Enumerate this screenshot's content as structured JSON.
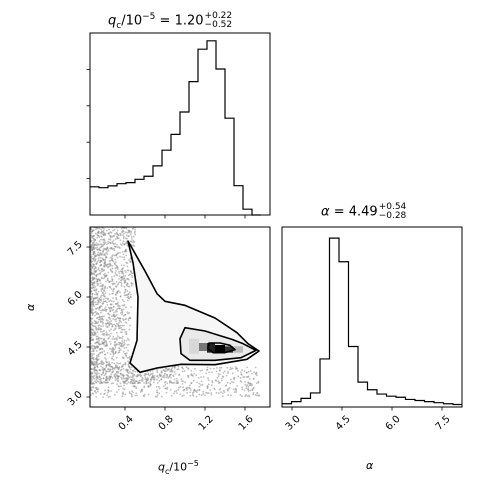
{
  "chart_data": [
    {
      "panel": "q_c marginal histogram",
      "type": "bar",
      "title": {
        "lhs": "q",
        "lhs_sub": "c",
        "lhs_rest": "/10",
        "lhs_exp": "−5",
        "eq": " = ",
        "value": "1.20",
        "plus": "+0.22",
        "minus": "−0.52"
      },
      "xlim": [
        0.05,
        1.85
      ],
      "bin_edges": [
        0.05,
        0.14,
        0.23,
        0.32,
        0.41,
        0.5,
        0.59,
        0.68,
        0.77,
        0.86,
        0.95,
        1.04,
        1.13,
        1.22,
        1.31,
        1.4,
        1.49,
        1.58,
        1.67,
        1.76
      ],
      "counts": [
        0.155,
        0.15,
        0.16,
        0.172,
        0.178,
        0.196,
        0.213,
        0.27,
        0.356,
        0.443,
        0.566,
        0.733,
        0.911,
        0.957,
        0.802,
        0.532,
        0.161,
        0.032,
        0.0
      ],
      "ylim": [
        0,
        1.0
      ],
      "ytick_marks": [
        0.2,
        0.4,
        0.6,
        0.8
      ]
    },
    {
      "panel": "joint 2D density",
      "type": "scatter",
      "xlabel": {
        "text": "q",
        "sub": "c",
        "rest": "/10",
        "exp": "−5"
      },
      "ylabel": "α",
      "xlim": [
        0.05,
        1.85
      ],
      "ylim": [
        2.7,
        8.1
      ],
      "xticks": [
        0.4,
        0.8,
        1.2,
        1.6
      ],
      "xticklabels": [
        "0.4",
        "0.8",
        "1.2",
        "1.6"
      ],
      "yticks": [
        3.0,
        4.5,
        6.0,
        7.5
      ],
      "yticklabels": [
        "3.0",
        "4.5",
        "6.0",
        "7.5"
      ],
      "contours": [
        {
          "level": "outer",
          "points": [
            [
              0.43,
              7.68
            ],
            [
              0.6,
              6.78
            ],
            [
              0.72,
              6.1
            ],
            [
              0.8,
              5.87
            ],
            [
              1.0,
              5.75
            ],
            [
              1.3,
              5.37
            ],
            [
              1.52,
              4.93
            ],
            [
              1.63,
              4.6
            ],
            [
              1.74,
              4.38
            ],
            [
              1.62,
              4.13
            ],
            [
              1.3,
              3.97
            ],
            [
              0.96,
              3.98
            ],
            [
              0.72,
              3.87
            ],
            [
              0.55,
              3.74
            ],
            [
              0.45,
              4.02
            ],
            [
              0.52,
              4.7
            ],
            [
              0.53,
              6.0
            ],
            [
              0.48,
              7.03
            ],
            [
              0.43,
              7.68
            ]
          ]
        },
        {
          "level": "middle",
          "points": [
            [
              1.0,
              5.08
            ],
            [
              1.2,
              4.98
            ],
            [
              1.36,
              4.83
            ],
            [
              1.47,
              4.73
            ],
            [
              1.58,
              4.6
            ],
            [
              1.71,
              4.4
            ],
            [
              1.56,
              4.18
            ],
            [
              1.3,
              4.1
            ],
            [
              1.05,
              4.1
            ],
            [
              0.96,
              4.3
            ],
            [
              0.95,
              4.75
            ],
            [
              1.0,
              5.08
            ]
          ]
        },
        {
          "level": "inner",
          "points": [
            [
              1.24,
              4.62
            ],
            [
              1.35,
              4.62
            ],
            [
              1.45,
              4.55
            ],
            [
              1.5,
              4.42
            ],
            [
              1.4,
              4.33
            ],
            [
              1.28,
              4.33
            ],
            [
              1.23,
              4.45
            ],
            [
              1.24,
              4.62
            ]
          ]
        }
      ],
      "dense_cells": [
        {
          "x0": 1.22,
          "x1": 1.3,
          "y0": 4.33,
          "y1": 4.62,
          "shade": "#222222"
        },
        {
          "x0": 1.3,
          "x1": 1.4,
          "y0": 4.33,
          "y1": 4.56,
          "shade": "#000000"
        },
        {
          "x0": 1.4,
          "x1": 1.48,
          "y0": 4.33,
          "y1": 4.52,
          "shade": "#333333"
        },
        {
          "x0": 1.14,
          "x1": 1.22,
          "y0": 4.38,
          "y1": 4.62,
          "shade": "#777777"
        },
        {
          "x0": 1.04,
          "x1": 1.14,
          "y0": 4.3,
          "y1": 4.75,
          "shade": "#d8d8d8"
        },
        {
          "x0": 1.48,
          "x1": 1.58,
          "y0": 4.33,
          "y1": 4.52,
          "shade": "#bbbbbb"
        }
      ]
    },
    {
      "panel": "alpha marginal histogram",
      "type": "bar",
      "title": {
        "lhs": "α",
        "eq": " = ",
        "value": "4.49",
        "plus": "+0.54",
        "minus": "−0.28"
      },
      "xlabel": "α",
      "xlim": [
        2.7,
        8.1
      ],
      "xticks": [
        3.0,
        4.5,
        6.0,
        7.5
      ],
      "xticklabels": [
        "3.0",
        "4.5",
        "6.0",
        "7.5"
      ],
      "bin_edges": [
        2.7,
        2.985,
        3.27,
        3.555,
        3.84,
        4.125,
        4.41,
        4.695,
        4.98,
        5.265,
        5.55,
        5.835,
        6.12,
        6.405,
        6.69,
        6.975,
        7.26,
        7.545,
        7.83,
        8.1
      ],
      "counts": [
        0.018,
        0.03,
        0.048,
        0.078,
        0.267,
        0.938,
        0.807,
        0.336,
        0.138,
        0.096,
        0.072,
        0.06,
        0.054,
        0.042,
        0.036,
        0.03,
        0.024,
        0.018,
        0.014
      ],
      "ylim": [
        0,
        1.0
      ]
    }
  ]
}
